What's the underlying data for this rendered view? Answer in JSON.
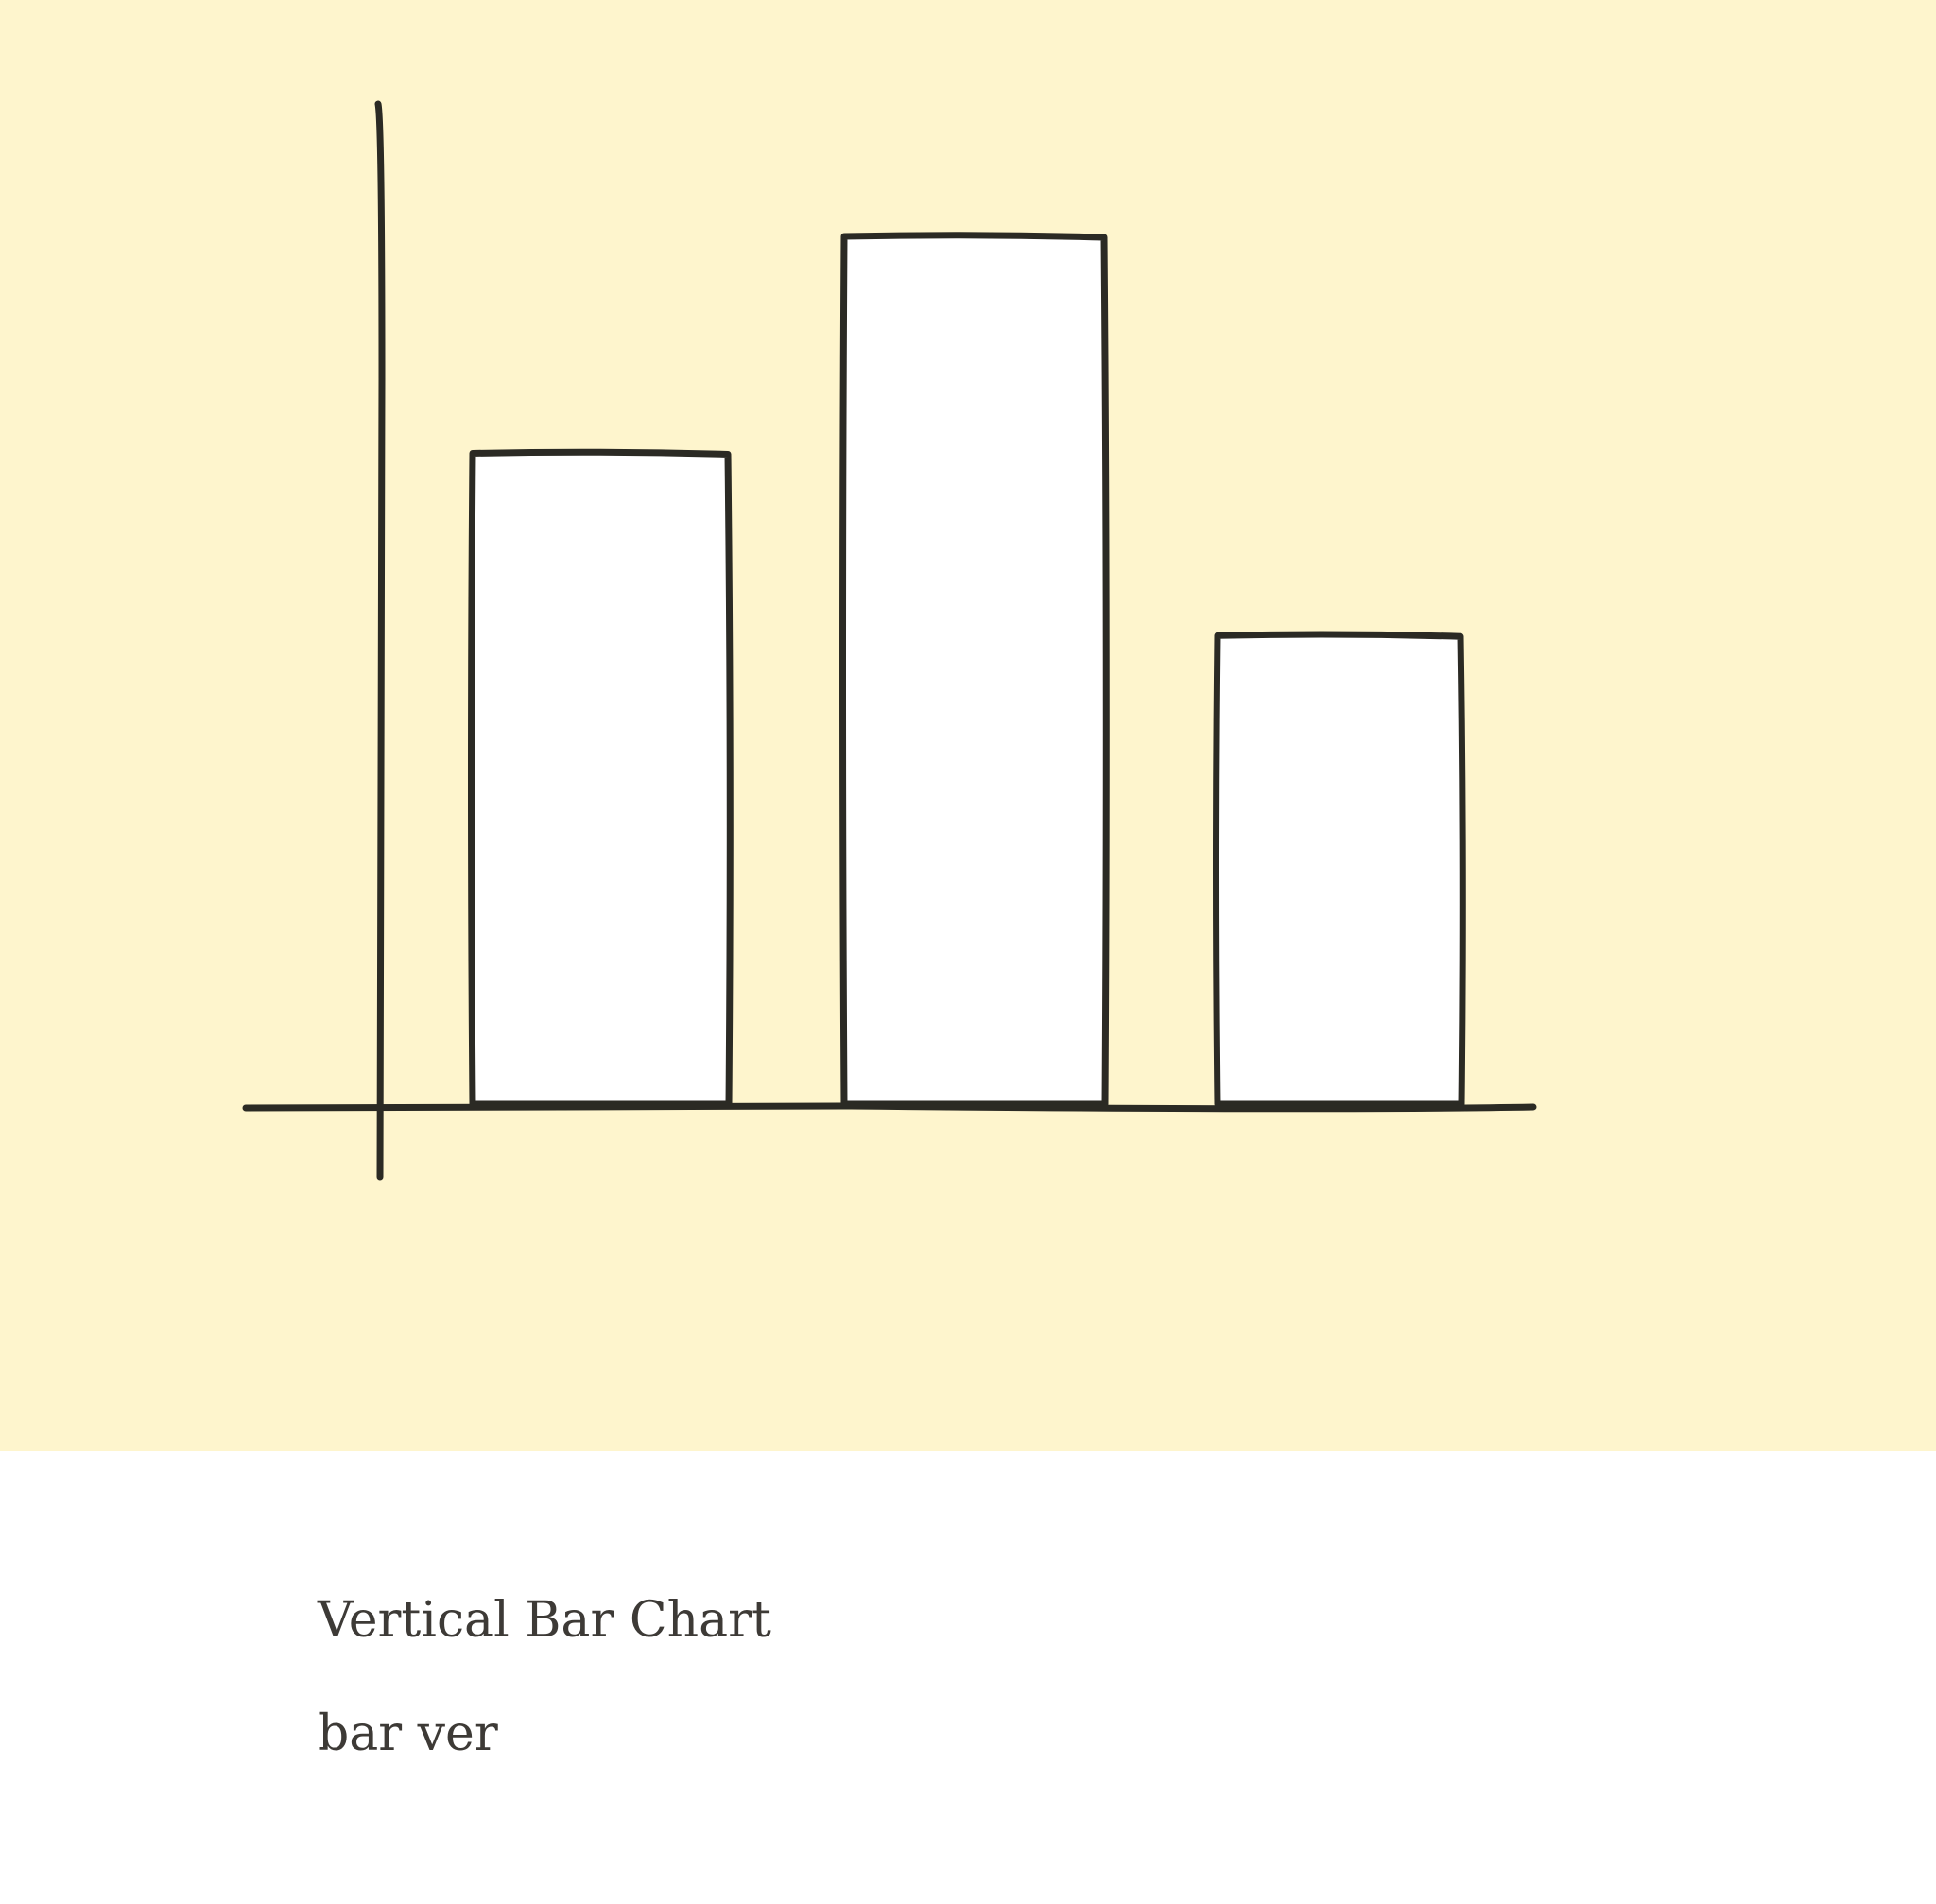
{
  "caption": {
    "title": "Vertical Bar Chart",
    "subtitle": "bar ver"
  },
  "illustration": {
    "icon": "vertical-bar-chart-sketch-icon",
    "bar_heights_relative": [
      0.75,
      1.0,
      0.54
    ],
    "colors": {
      "background": "#fef5cd",
      "stroke": "#2b2a24",
      "bar_fill": "#ffffff",
      "caption_text": "#3d3a36"
    }
  }
}
